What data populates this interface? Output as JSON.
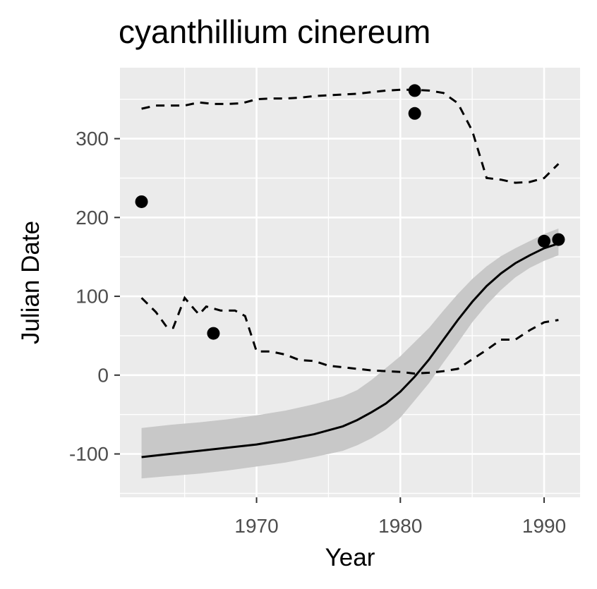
{
  "chart_data": {
    "type": "scatter",
    "title": "cyanthillium cinereum",
    "xlabel": "Year",
    "ylabel": "Julian Date",
    "xlim": [
      1960.5,
      1992.5
    ],
    "ylim": [
      -155,
      390
    ],
    "x_ticks": [
      1970,
      1980,
      1990
    ],
    "y_ticks": [
      -100,
      0,
      100,
      200,
      300
    ],
    "grid": true,
    "legend": "none",
    "colors": {
      "panel_background": "#ebebeb",
      "grid_line": "#ffffff",
      "points": "#000000",
      "lines": "#000000",
      "ribbon": "#c8c8c8",
      "tick_label": "#4d4d4d"
    },
    "points": [
      {
        "x": 1962,
        "y": 220
      },
      {
        "x": 1967,
        "y": 53
      },
      {
        "x": 1981,
        "y": 361
      },
      {
        "x": 1981,
        "y": 332
      },
      {
        "x": 1990,
        "y": 170
      },
      {
        "x": 1991,
        "y": 172
      }
    ],
    "fit_line": {
      "x": [
        1962,
        1964,
        1966,
        1968,
        1970,
        1972,
        1974,
        1976,
        1977,
        1978,
        1979,
        1980,
        1981,
        1982,
        1983,
        1984,
        1985,
        1986,
        1987,
        1988,
        1989,
        1990,
        1991
      ],
      "y": [
        -104,
        -100,
        -96,
        -92,
        -88,
        -82,
        -75,
        -65,
        -57,
        -47,
        -36,
        -21,
        -2,
        20,
        45,
        70,
        93,
        113,
        129,
        142,
        152,
        161,
        167
      ]
    },
    "ribbon": {
      "x": [
        1962,
        1964,
        1966,
        1968,
        1970,
        1972,
        1974,
        1976,
        1977,
        1978,
        1979,
        1980,
        1981,
        1982,
        1983,
        1984,
        1985,
        1986,
        1987,
        1988,
        1989,
        1990,
        1991
      ],
      "upper": [
        -67,
        -63,
        -60,
        -56,
        -51,
        -45,
        -37,
        -27,
        -19,
        -6,
        9,
        24,
        42,
        60,
        82,
        103,
        122,
        138,
        151,
        161,
        170,
        179,
        186
      ],
      "lower": [
        -131,
        -128,
        -125,
        -121,
        -116,
        -111,
        -104,
        -96,
        -89,
        -80,
        -69,
        -54,
        -32,
        -10,
        16,
        41,
        67,
        89,
        108,
        124,
        136,
        145,
        152
      ]
    },
    "upper_quantile": {
      "x": [
        1962,
        1963,
        1964,
        1965,
        1966,
        1967,
        1968,
        1969,
        1970,
        1971,
        1972,
        1973,
        1974,
        1975,
        1976,
        1977,
        1978,
        1979,
        1980,
        1981,
        1982,
        1983,
        1984,
        1985,
        1986,
        1987,
        1988,
        1989,
        1990,
        1991
      ],
      "y": [
        338,
        342,
        342,
        342,
        346,
        344,
        344,
        345,
        350,
        351,
        351,
        352,
        354,
        355,
        356,
        357,
        359,
        361,
        362,
        362,
        361,
        358,
        345,
        310,
        250,
        248,
        244,
        245,
        250,
        268
      ]
    },
    "lower_quantile": {
      "x": [
        1962,
        1963,
        1963.8,
        1964.2,
        1965,
        1965.7,
        1966,
        1966.5,
        1967.5,
        1968.5,
        1969.2,
        1970,
        1971,
        1972,
        1973,
        1974,
        1975,
        1976,
        1977,
        1978,
        1979,
        1980,
        1981,
        1982,
        1983,
        1984,
        1985,
        1986,
        1987,
        1988,
        1989,
        1990,
        1991
      ],
      "y": [
        98,
        80,
        60,
        60,
        98,
        83,
        77,
        87,
        82,
        82,
        75,
        30,
        30,
        26,
        19,
        18,
        12,
        10,
        8,
        6,
        5,
        4,
        2,
        3,
        5,
        8,
        20,
        32,
        45,
        45,
        57,
        67,
        70
      ]
    }
  }
}
